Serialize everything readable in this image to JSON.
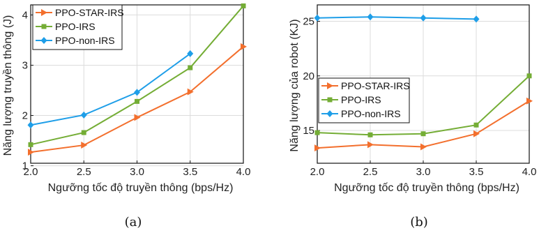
{
  "colors": {
    "PPO-STAR-IRS": "#f36f2d",
    "PPO-IRS": "#74ad35",
    "PPO-non-IRS": "#1e9ee8"
  },
  "chart_data": [
    {
      "type": "line",
      "caption": "(a)",
      "xlabel": "Ngưỡng tốc độ truyền thông (bps/Hz)",
      "ylabel": "Năng lượng truyền thông (J)",
      "x": [
        2.0,
        2.5,
        3.0,
        3.5,
        4.0
      ],
      "xticks": [
        "2.0",
        "2.5",
        "3.0",
        "3.5",
        "4.0"
      ],
      "xlim": [
        2.0,
        4.0
      ],
      "yticks": [
        "1",
        "2",
        "3",
        "4"
      ],
      "ylim": [
        1.05,
        4.2
      ],
      "grid": true,
      "legend_position": "top-left",
      "series": [
        {
          "name": "PPO-STAR-IRS",
          "marker": "triangle-right",
          "values": [
            1.27,
            1.41,
            1.96,
            2.47,
            3.37
          ]
        },
        {
          "name": "PPO-IRS",
          "marker": "square",
          "values": [
            1.42,
            1.66,
            2.28,
            2.95,
            4.18
          ]
        },
        {
          "name": "PPO-non-IRS",
          "marker": "diamond",
          "values": [
            1.81,
            2.01,
            2.46,
            3.23,
            null
          ]
        }
      ]
    },
    {
      "type": "line",
      "caption": "(b)",
      "xlabel": "Ngưỡng tốc độ truyền thông (bps/Hz)",
      "ylabel": "Năng lượng của robot (KJ)",
      "x": [
        2.0,
        2.5,
        3.0,
        3.5,
        4.0
      ],
      "xticks": [
        "2.0",
        "2.5",
        "3.0",
        "3.5",
        "4.0"
      ],
      "xlim": [
        2.0,
        4.0
      ],
      "yticks": [
        "15",
        "20",
        "25"
      ],
      "ylim": [
        12.0,
        26.5
      ],
      "grid": true,
      "legend_position": "center-left",
      "series": [
        {
          "name": "PPO-STAR-IRS",
          "marker": "triangle-right",
          "values": [
            13.4,
            13.7,
            13.5,
            14.7,
            17.7
          ]
        },
        {
          "name": "PPO-IRS",
          "marker": "square",
          "values": [
            14.8,
            14.6,
            14.7,
            15.5,
            20.0
          ]
        },
        {
          "name": "PPO-non-IRS",
          "marker": "diamond",
          "values": [
            25.3,
            25.4,
            25.3,
            25.2,
            null
          ]
        }
      ]
    }
  ]
}
